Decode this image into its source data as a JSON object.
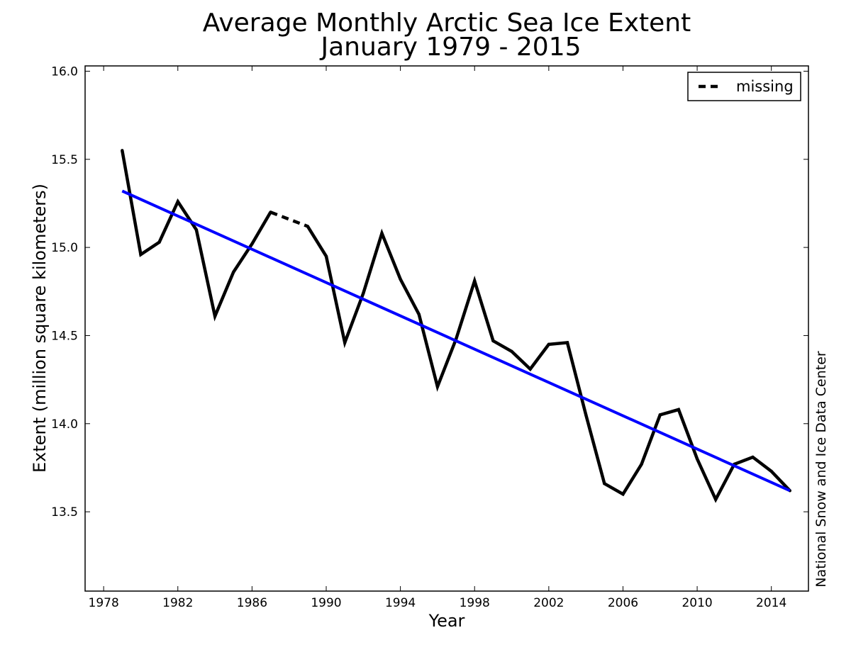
{
  "chart_data": {
    "type": "line",
    "title": "Average Monthly Arctic Sea Ice Extent",
    "subtitle": "January 1979 - 2015",
    "xlabel": "Year",
    "ylabel": "Extent (million square kilometers)",
    "xlim": [
      1977,
      2016
    ],
    "ylim": [
      13.05,
      16.03
    ],
    "xticks": [
      1978,
      1982,
      1986,
      1990,
      1994,
      1998,
      2002,
      2006,
      2010,
      2014
    ],
    "yticks": [
      13.5,
      14.0,
      14.5,
      15.0,
      15.5,
      16.0
    ],
    "ytick_labels": [
      "13.5",
      "14.0",
      "14.5",
      "15.0",
      "15.5",
      "16.0"
    ],
    "grid": false,
    "legend": {
      "placement": "top-right",
      "entries": [
        {
          "label": "missing",
          "style": "dashed"
        }
      ]
    },
    "series": [
      {
        "type": "observed",
        "color": "#000000",
        "x": [
          1979,
          1980,
          1981,
          1982,
          1983,
          1984,
          1985,
          1986,
          1987,
          1989,
          1990,
          1991,
          1992,
          1993,
          1994,
          1995,
          1996,
          1997,
          1998,
          1999,
          2000,
          2001,
          2002,
          2003,
          2004,
          2005,
          2006,
          2007,
          2008,
          2009,
          2010,
          2011,
          2012,
          2013,
          2014,
          2015
        ],
        "y": [
          15.55,
          14.96,
          15.03,
          15.26,
          15.1,
          14.61,
          14.86,
          15.02,
          15.2,
          15.12,
          14.95,
          14.46,
          14.74,
          15.08,
          14.82,
          14.62,
          14.21,
          14.48,
          14.81,
          14.47,
          14.41,
          14.31,
          14.45,
          14.46,
          14.05,
          13.66,
          13.6,
          13.77,
          14.05,
          14.08,
          13.8,
          13.57,
          13.77,
          13.81,
          13.73,
          13.62
        ]
      },
      {
        "type": "missing",
        "color": "#000000",
        "x": [
          1987,
          1989
        ],
        "y": [
          15.2,
          15.12
        ]
      },
      {
        "type": "trend",
        "color": "#0000ff",
        "x": [
          1979,
          2015
        ],
        "y": [
          15.32,
          13.62
        ]
      }
    ]
  },
  "credit": "National Snow and Ice Data Center"
}
